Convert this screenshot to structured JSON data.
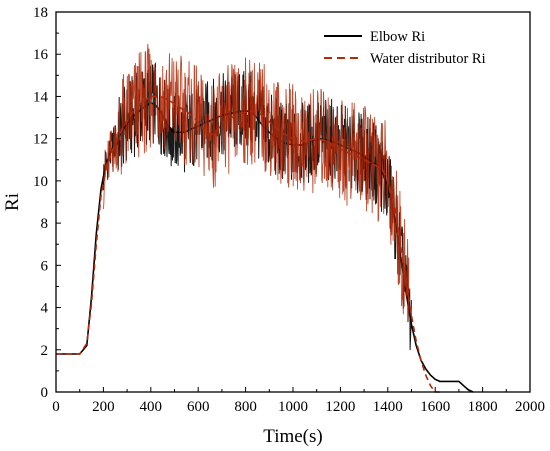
{
  "chart_data": {
    "type": "line",
    "xlabel": "Time(s)",
    "ylabel": "Ri",
    "xlim": [
      0,
      2000
    ],
    "ylim": [
      0,
      18
    ],
    "x_ticks": [
      0,
      200,
      400,
      600,
      800,
      1000,
      1200,
      1400,
      1600,
      1800,
      2000
    ],
    "y_ticks": [
      0,
      2,
      4,
      6,
      8,
      10,
      12,
      14,
      16,
      18
    ],
    "grid": false,
    "legend_position": "top-right",
    "series": [
      {
        "name": "Elbow Ri",
        "style": "solid",
        "color": "#000000",
        "x": [
          0,
          50,
          100,
          130,
          150,
          170,
          190,
          210,
          240,
          280,
          320,
          360,
          400,
          420,
          440,
          460,
          480,
          500,
          540,
          580,
          620,
          660,
          700,
          740,
          780,
          820,
          840,
          860,
          880,
          900,
          920,
          960,
          1000,
          1040,
          1080,
          1120,
          1160,
          1200,
          1240,
          1280,
          1320,
          1360,
          1380,
          1400,
          1420,
          1440,
          1460,
          1480,
          1500,
          1520,
          1540,
          1560,
          1580,
          1600,
          1620,
          1640,
          1660,
          1680,
          1700,
          1720,
          1740,
          1760
        ],
        "y": [
          1.8,
          1.8,
          1.8,
          2.2,
          4.5,
          7.5,
          9.6,
          10.8,
          11.6,
          12.4,
          13.0,
          13.4,
          13.7,
          13.6,
          13.3,
          12.9,
          12.5,
          12.3,
          12.3,
          12.5,
          12.7,
          12.9,
          13.1,
          13.2,
          13.3,
          13.3,
          13.1,
          12.8,
          12.5,
          12.3,
          12.1,
          11.8,
          11.7,
          11.7,
          11.9,
          12.0,
          11.9,
          11.7,
          11.5,
          11.3,
          11.0,
          10.7,
          10.3,
          9.7,
          8.8,
          7.5,
          6.0,
          4.5,
          3.2,
          2.2,
          1.5,
          1.1,
          0.8,
          0.6,
          0.5,
          0.5,
          0.5,
          0.5,
          0.5,
          0.3,
          0.1,
          0.0
        ]
      },
      {
        "name": "Water distributor Ri",
        "style": "dashed",
        "color": "#b22a0a",
        "x": [
          0,
          50,
          100,
          130,
          150,
          170,
          190,
          210,
          240,
          280,
          320,
          360,
          400,
          440,
          480,
          520,
          560,
          600,
          620,
          640,
          660,
          680,
          700,
          740,
          780,
          820,
          860,
          880,
          900,
          940,
          980,
          1020,
          1060,
          1100,
          1140,
          1180,
          1220,
          1260,
          1300,
          1340,
          1380,
          1400,
          1420,
          1440,
          1460,
          1480,
          1500,
          1520,
          1540,
          1560,
          1580,
          1600,
          1620
        ],
        "y": [
          1.8,
          1.8,
          1.8,
          2.3,
          4.2,
          7.0,
          9.3,
          10.5,
          11.5,
          12.5,
          13.2,
          13.7,
          14.0,
          14.0,
          13.8,
          13.5,
          13.2,
          12.8,
          12.5,
          12.2,
          12.2,
          12.4,
          12.7,
          13.0,
          13.2,
          13.3,
          13.2,
          13.0,
          12.8,
          12.4,
          12.1,
          11.9,
          11.9,
          12.0,
          11.9,
          11.6,
          11.4,
          11.2,
          11.0,
          10.8,
          10.5,
          10.0,
          9.2,
          8.0,
          6.5,
          5.0,
          3.6,
          2.4,
          1.5,
          0.8,
          0.3,
          0.0,
          0.0
        ]
      }
    ]
  }
}
